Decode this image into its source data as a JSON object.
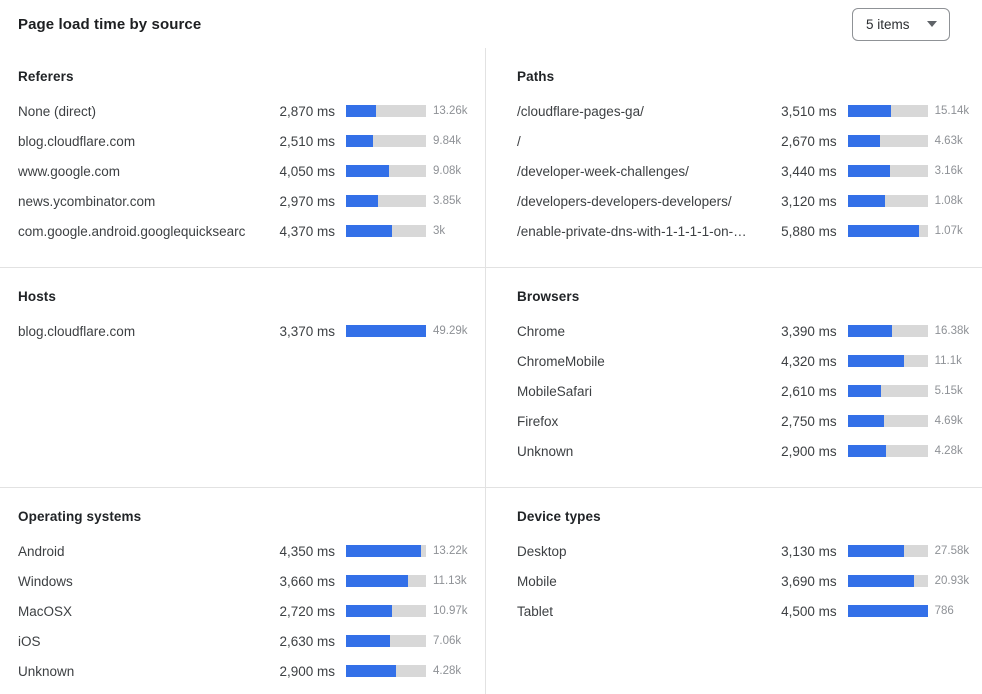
{
  "header": {
    "title": "Page load time by source",
    "items_select": {
      "value": "5 items",
      "icon": "chevron-down-icon"
    }
  },
  "colors": {
    "bar_fill": "#3370e8",
    "bar_track": "#d8d8d8",
    "divider": "#e2e2e2",
    "count_text": "#8e9196"
  },
  "chart_data": [
    {
      "type": "bar",
      "title": "Referers",
      "unit": "ms",
      "categories": [
        "None (direct)",
        "blog.cloudflare.com",
        "www.google.com",
        "news.ycombinator.com",
        "com.google.android.googlequicksearc…"
      ],
      "values": [
        2870,
        2510,
        4050,
        2970,
        4370
      ],
      "value_labels": [
        "2,870 ms",
        "2,510 ms",
        "4,050 ms",
        "2,970 ms",
        "4,370 ms"
      ],
      "counts": [
        "13.26k",
        "9.84k",
        "9.08k",
        "3.85k",
        "3k"
      ],
      "fill_pct": [
        38,
        34,
        54,
        40,
        58
      ]
    },
    {
      "type": "bar",
      "title": "Paths",
      "unit": "ms",
      "categories": [
        "/cloudflare-pages-ga/",
        "/",
        "/developer-week-challenges/",
        "/developers-developers-developers/",
        "/enable-private-dns-with-1-1-1-1-on-…"
      ],
      "values": [
        3510,
        2670,
        3440,
        3120,
        5880
      ],
      "value_labels": [
        "3,510 ms",
        "2,670 ms",
        "3,440 ms",
        "3,120 ms",
        "5,880 ms"
      ],
      "counts": [
        "15.14k",
        "4.63k",
        "3.16k",
        "1.08k",
        "1.07k"
      ],
      "fill_pct": [
        54,
        40,
        53,
        47,
        89
      ]
    },
    {
      "type": "bar",
      "title": "Hosts",
      "unit": "ms",
      "categories": [
        "blog.cloudflare.com"
      ],
      "values": [
        3370
      ],
      "value_labels": [
        "3,370 ms"
      ],
      "counts": [
        "49.29k"
      ],
      "fill_pct": [
        100
      ]
    },
    {
      "type": "bar",
      "title": "Browsers",
      "unit": "ms",
      "categories": [
        "Chrome",
        "ChromeMobile",
        "MobileSafari",
        "Firefox",
        "Unknown"
      ],
      "values": [
        3390,
        4320,
        2610,
        2750,
        2900
      ],
      "value_labels": [
        "3,390 ms",
        "4,320 ms",
        "2,610 ms",
        "2,750 ms",
        "2,900 ms"
      ],
      "counts": [
        "16.38k",
        "11.1k",
        "5.15k",
        "4.69k",
        "4.28k"
      ],
      "fill_pct": [
        56,
        71,
        42,
        45,
        48
      ]
    },
    {
      "type": "bar",
      "title": "Operating systems",
      "unit": "ms",
      "categories": [
        "Android",
        "Windows",
        "MacOSX",
        "iOS",
        "Unknown"
      ],
      "values": [
        4350,
        3660,
        2720,
        2630,
        2900
      ],
      "value_labels": [
        "4,350 ms",
        "3,660 ms",
        "2,720 ms",
        "2,630 ms",
        "2,900 ms"
      ],
      "counts": [
        "13.22k",
        "11.13k",
        "10.97k",
        "7.06k",
        "4.28k"
      ],
      "fill_pct": [
        94,
        78,
        58,
        55,
        62
      ]
    },
    {
      "type": "bar",
      "title": "Device types",
      "unit": "ms",
      "categories": [
        "Desktop",
        "Mobile",
        "Tablet"
      ],
      "values": [
        3130,
        3690,
        4500
      ],
      "value_labels": [
        "3,130 ms",
        "3,690 ms",
        "4,500 ms"
      ],
      "counts": [
        "27.58k",
        "20.93k",
        "786"
      ],
      "fill_pct": [
        70,
        83,
        100
      ]
    }
  ]
}
